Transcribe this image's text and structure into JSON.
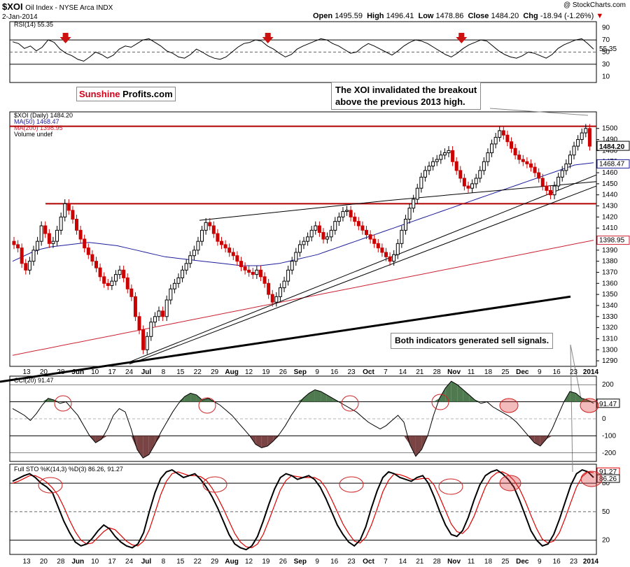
{
  "header": {
    "symbol": "$XOI",
    "name": "Oil Index - NYSE Arca INDX",
    "date": "2-Jan-2014",
    "source": "@ StockCharts.com",
    "open_label": "Open",
    "open": "1495.59",
    "high_label": "High",
    "high": "1496.41",
    "low_label": "Low",
    "low": "1478.86",
    "close_label": "Close",
    "close": "1484.20",
    "chg_label": "Chg",
    "chg": "-18.94 (-1.26%)",
    "chg_arrow": "▼"
  },
  "logo": {
    "part1": "Sunshine",
    "part2": "Profits.com"
  },
  "annotations": {
    "breakout": "The XOI invalidated the breakout\nabove the previous 2013 high.",
    "signals": "Both indicators generated sell signals."
  },
  "colors": {
    "up": "#000000",
    "down": "#cc0000",
    "ma50": "#1c1c99",
    "ma200": "#cc2233",
    "resistance": "#b00000",
    "cci_pos": "#4f7a4f",
    "cci_neg": "#7a4444",
    "sto_d": "#e00000"
  },
  "chart_data": [
    {
      "type": "line",
      "title": "RSI(14) 55.35",
      "ylim": [
        0,
        100
      ],
      "yticks": [
        10,
        30,
        50,
        70,
        90
      ],
      "last_label": "55.35",
      "values": [
        67,
        64,
        56,
        60,
        52,
        58,
        70,
        66,
        55,
        48,
        44,
        38,
        35,
        42,
        50,
        46,
        40,
        45,
        55,
        60,
        58,
        64,
        70,
        72,
        66,
        60,
        52,
        48,
        42,
        40,
        46,
        55,
        50,
        44,
        40,
        38,
        42,
        50,
        58,
        64,
        66,
        70,
        68,
        60,
        55,
        48,
        42,
        46,
        55,
        60,
        64,
        68,
        72,
        70,
        64,
        60,
        54,
        48,
        50,
        58,
        64,
        60,
        55,
        50,
        45,
        52,
        60,
        66,
        70,
        68,
        64,
        58,
        52,
        46,
        42,
        48,
        56,
        62,
        66,
        70,
        68,
        60,
        52,
        46,
        42,
        40,
        44,
        50,
        48,
        44,
        40,
        46,
        56,
        62,
        66,
        70,
        72,
        64,
        55
      ],
      "signal_arrows_x": [
        0.095,
        0.44,
        0.77
      ]
    },
    {
      "type": "candlestick",
      "title": "$XOI (Daily) 1484.20",
      "legend": [
        "MA(50) 1468.47",
        "MA(200) 1398.95",
        "Volume undef"
      ],
      "ylim": [
        1285,
        1515
      ],
      "yticks": [
        1290,
        1300,
        1310,
        1320,
        1330,
        1340,
        1350,
        1360,
        1370,
        1380,
        1390,
        1400,
        1410,
        1420,
        1430,
        1440,
        1450,
        1460,
        1470,
        1480,
        1490,
        1500
      ],
      "last_labels": [
        "1484.20",
        "1468.47",
        "1398.95"
      ],
      "resistance_levels": [
        1502,
        1432
      ],
      "x_labels": [
        "13",
        "20",
        "28",
        "Jun",
        "10",
        "17",
        "24",
        "Jul",
        "8",
        "15",
        "22",
        "29",
        "Aug",
        "12",
        "19",
        "26",
        "Sep",
        "9",
        "16",
        "23",
        "Oct",
        "7",
        "14",
        "21",
        "28",
        "Nov",
        "11",
        "18",
        "25",
        "Dec",
        "9",
        "16",
        "23",
        "2014"
      ],
      "close": [
        1395,
        1392,
        1378,
        1372,
        1380,
        1390,
        1398,
        1412,
        1405,
        1396,
        1398,
        1408,
        1420,
        1432,
        1426,
        1418,
        1408,
        1400,
        1392,
        1386,
        1380,
        1374,
        1366,
        1360,
        1358,
        1362,
        1368,
        1372,
        1365,
        1355,
        1348,
        1330,
        1318,
        1300,
        1312,
        1325,
        1330,
        1335,
        1330,
        1345,
        1355,
        1360,
        1365,
        1372,
        1378,
        1385,
        1390,
        1398,
        1408,
        1415,
        1412,
        1405,
        1398,
        1395,
        1392,
        1388,
        1385,
        1380,
        1375,
        1372,
        1370,
        1368,
        1372,
        1366,
        1360,
        1350,
        1343,
        1348,
        1356,
        1362,
        1372,
        1380,
        1388,
        1395,
        1398,
        1402,
        1408,
        1412,
        1406,
        1400,
        1402,
        1408,
        1416,
        1420,
        1425,
        1426,
        1420,
        1416,
        1412,
        1408,
        1404,
        1400,
        1396,
        1392,
        1388,
        1384,
        1380,
        1386,
        1396,
        1408,
        1418,
        1428,
        1436,
        1446,
        1456,
        1462,
        1466,
        1470,
        1472,
        1476,
        1478,
        1480,
        1470,
        1462,
        1455,
        1448,
        1446,
        1450,
        1455,
        1462,
        1470,
        1478,
        1486,
        1492,
        1498,
        1494,
        1488,
        1482,
        1476,
        1472,
        1470,
        1468,
        1465,
        1460,
        1455,
        1448,
        1444,
        1440,
        1448,
        1456,
        1462,
        1468,
        1476,
        1484,
        1490,
        1496,
        1500,
        1484
      ],
      "ma50": [
        1380,
        1384,
        1388,
        1391,
        1393,
        1394,
        1395,
        1396,
        1397,
        1396,
        1395,
        1394,
        1392,
        1390,
        1388,
        1386,
        1384,
        1383,
        1382,
        1381,
        1380,
        1379,
        1378,
        1377,
        1376,
        1376,
        1376,
        1377,
        1378,
        1380,
        1382,
        1384,
        1386,
        1389,
        1392,
        1395,
        1398,
        1401,
        1404,
        1407,
        1410,
        1413,
        1416,
        1419,
        1422,
        1425,
        1428,
        1431,
        1434,
        1437,
        1440,
        1443,
        1446,
        1449,
        1452,
        1455,
        1458,
        1461,
        1464,
        1467,
        1468,
        1469
      ],
      "ma200": [
        1295,
        1297,
        1299,
        1301,
        1303,
        1305,
        1307,
        1309,
        1311,
        1313,
        1315,
        1317,
        1319,
        1321,
        1323,
        1325,
        1327,
        1329,
        1331,
        1333,
        1335,
        1337,
        1339,
        1341,
        1343,
        1345,
        1347,
        1349,
        1351,
        1353,
        1355,
        1357,
        1359,
        1361,
        1363,
        1365,
        1367,
        1369,
        1371,
        1373,
        1375,
        1377,
        1379,
        1381,
        1383,
        1385,
        1387,
        1389,
        1391,
        1393,
        1395,
        1397,
        1399
      ]
    },
    {
      "type": "line",
      "title": "CCI(20) 91.47",
      "ylim": [
        -250,
        250
      ],
      "yticks": [
        -200,
        -100,
        0,
        100,
        200
      ],
      "last_label": "91.47",
      "values": [
        60,
        40,
        20,
        -10,
        30,
        80,
        120,
        110,
        90,
        100,
        60,
        20,
        -40,
        -100,
        -140,
        -120,
        -60,
        20,
        60,
        40,
        -60,
        -180,
        -230,
        -210,
        -150,
        -80,
        -20,
        40,
        90,
        130,
        150,
        140,
        110,
        120,
        100,
        80,
        50,
        20,
        -20,
        -60,
        -100,
        -150,
        -170,
        -160,
        -130,
        -90,
        -40,
        20,
        70,
        120,
        150,
        170,
        160,
        140,
        120,
        100,
        80,
        60,
        40,
        10,
        -20,
        -40,
        -60,
        -40,
        -10,
        20,
        -20,
        -150,
        -220,
        -180,
        -100,
        20,
        120,
        180,
        220,
        200,
        170,
        140,
        110,
        90,
        100,
        70,
        50,
        30,
        10,
        -20,
        -60,
        -100,
        -140,
        -160,
        -120,
        -60,
        20,
        100,
        160,
        150,
        120,
        110,
        91
      ]
    },
    {
      "type": "line",
      "title": "Full STO %K(14,3) %D(3) 86.26, 91.27",
      "ylim": [
        5,
        100
      ],
      "yticks": [
        20,
        50,
        80
      ],
      "last_labels": [
        "91.27",
        "86.26"
      ],
      "k": [
        82,
        85,
        88,
        90,
        86,
        80,
        76,
        70,
        55,
        40,
        28,
        18,
        14,
        16,
        22,
        30,
        36,
        32,
        24,
        18,
        14,
        12,
        16,
        28,
        50,
        70,
        85,
        92,
        94,
        90,
        86,
        88,
        90,
        84,
        76,
        66,
        54,
        40,
        26,
        16,
        12,
        10,
        14,
        24,
        40,
        58,
        74,
        86,
        90,
        88,
        84,
        86,
        88,
        84,
        76,
        64,
        50,
        36,
        26,
        18,
        14,
        20,
        34,
        54,
        72,
        86,
        92,
        90,
        86,
        84,
        82,
        86,
        88,
        80,
        66,
        50,
        36,
        26,
        24,
        30,
        44,
        62,
        78,
        88,
        92,
        94,
        90,
        84,
        76,
        62,
        46,
        30,
        20,
        14,
        16,
        26,
        42,
        60,
        78,
        90,
        94,
        92,
        86
      ],
      "d": [
        80,
        82,
        85,
        88,
        88,
        85,
        81,
        75,
        67,
        55,
        41,
        29,
        20,
        16,
        17,
        23,
        29,
        33,
        31,
        25,
        19,
        15,
        14,
        19,
        31,
        49,
        68,
        82,
        90,
        92,
        90,
        88,
        88,
        87,
        83,
        75,
        65,
        53,
        40,
        27,
        18,
        13,
        12,
        16,
        26,
        41,
        57,
        73,
        83,
        88,
        87,
        86,
        86,
        86,
        83,
        75,
        63,
        50,
        37,
        27,
        19,
        17,
        23,
        36,
        53,
        71,
        83,
        90,
        89,
        87,
        84,
        84,
        85,
        85,
        78,
        65,
        51,
        37,
        29,
        27,
        33,
        45,
        61,
        76,
        86,
        91,
        92,
        89,
        83,
        74,
        61,
        46,
        32,
        21,
        17,
        19,
        28,
        43,
        60,
        76,
        87,
        92,
        91
      ]
    }
  ]
}
